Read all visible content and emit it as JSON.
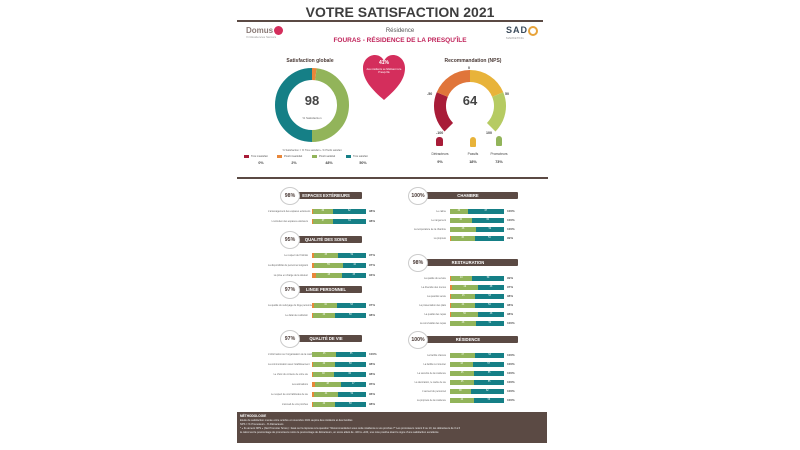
{
  "title": "VOTRE SATISFACTION 2021",
  "logos": {
    "left": "Domus",
    "left_sub": "Vi Résidences Séniors",
    "right": "SAD",
    "right_sub": "MARKETING"
  },
  "residence_label": "Résidence",
  "residence_name": "FOURAS - RÉSIDENCE DE LA PRESQU'ÎLE",
  "global": {
    "title": "Satisfaction globale",
    "value": "98",
    "caption": "% Satisfaction",
    "formula": "% Satisfaction = % Très satisfait + % Plutôt satisfait",
    "legend": [
      {
        "label": "Très insatisfait",
        "value": "0%",
        "color": "#a81c38"
      },
      {
        "label": "Plutôt insatisfait",
        "value": "2%",
        "color": "#e8873a"
      },
      {
        "label": "Plutôt satisfait",
        "value": "48%",
        "color": "#92b45a"
      },
      {
        "label": "Très satisfait",
        "value": "50%",
        "color": "#157f86"
      }
    ],
    "chart_data": {
      "type": "pie",
      "categories": [
        "Très insatisfait",
        "Plutôt insatisfait",
        "Plutôt satisfait",
        "Très satisfait"
      ],
      "values": [
        0,
        2,
        48,
        50
      ]
    }
  },
  "heart": {
    "pct": "41%",
    "text": "des résidents se fidélisent à la Presqu'île"
  },
  "nps": {
    "title": "Recommandation (NPS)",
    "value": "64",
    "ticks": [
      "-100",
      "-50",
      "0",
      "50",
      "100"
    ],
    "groups": [
      {
        "label": "Détracteurs",
        "value": "9%",
        "color": "#a81c38"
      },
      {
        "label": "Passifs",
        "value": "18%",
        "color": "#e8b33a"
      },
      {
        "label": "Promoteurs",
        "value": "73%",
        "color": "#92b45a"
      }
    ]
  },
  "categories": [
    {
      "name": "ESPACES EXTÉRIEURS",
      "pct": "98%",
      "items": [
        {
          "label": "L'aménagement des espaces extérieurs",
          "segs": [
            0,
            2,
            36,
            62
          ],
          "total": "98%"
        },
        {
          "label": "L'entretien des espaces extérieurs",
          "segs": [
            0,
            2,
            37,
            61
          ],
          "total": "98%"
        }
      ]
    },
    {
      "name": "QUALITÉ DES SOINS",
      "pct": "95%",
      "items": [
        {
          "label": "Le respect de l'intimité",
          "segs": [
            0,
            3,
            45,
            52
          ],
          "total": "97%"
        },
        {
          "label": "La disponibilité du personnel soignant",
          "segs": [
            0,
            3,
            55,
            42
          ],
          "total": "97%"
        },
        {
          "label": "La prise en charge de la douleur",
          "segs": [
            0,
            7,
            48,
            45
          ],
          "total": "93%"
        }
      ]
    },
    {
      "name": "LINGE PERSONNEL",
      "pct": "97%",
      "items": [
        {
          "label": "La qualité du nettoyage du linge personnel",
          "segs": [
            0,
            3,
            44,
            53
          ],
          "total": "97%"
        },
        {
          "label": "Le délai de restitution",
          "segs": [
            0,
            2,
            40,
            58
          ],
          "total": "98%"
        }
      ]
    },
    {
      "name": "QUALITÉ DE VIE",
      "pct": "97%",
      "items": [
        {
          "label": "L'information sur l'organisation de la résidence",
          "segs": [
            0,
            0,
            45,
            55
          ],
          "total": "100%"
        },
        {
          "label": "La communication avec l'établissement",
          "segs": [
            0,
            2,
            40,
            58
          ],
          "total": "98%"
        },
        {
          "label": "Le choix du contenu de votre vie",
          "segs": [
            0,
            2,
            38,
            60
          ],
          "total": "98%"
        },
        {
          "label": "Les animations",
          "segs": [
            0,
            5,
            48,
            47
          ],
          "total": "95%"
        },
        {
          "label": "Le respect de vos habitudes de vie",
          "segs": [
            0,
            4,
            44,
            52
          ],
          "total": "96%"
        },
        {
          "label": "L'accueil de vos proches",
          "segs": [
            0,
            2,
            40,
            58
          ],
          "total": "98%"
        }
      ]
    },
    {
      "name": "CHAMBRE",
      "pct": "100%",
      "items": [
        {
          "label": "Le calme",
          "segs": [
            0,
            0,
            33,
            67
          ],
          "total": "100%"
        },
        {
          "label": "Le rangement",
          "segs": [
            0,
            0,
            40,
            60
          ],
          "total": "100%"
        },
        {
          "label": "La température de la chambre",
          "segs": [
            0,
            0,
            48,
            52
          ],
          "total": "100%"
        },
        {
          "label": "La propreté",
          "segs": [
            0,
            1,
            45,
            54
          ],
          "total": "99%"
        }
      ]
    },
    {
      "name": "RESTAURATION",
      "pct": "98%",
      "items": [
        {
          "label": "La qualité du service",
          "segs": [
            0,
            1,
            40,
            59
          ],
          "total": "99%"
        },
        {
          "label": "La diversité des menus",
          "segs": [
            0,
            3,
            49,
            48
          ],
          "total": "97%"
        },
        {
          "label": "La quantité servie",
          "segs": [
            0,
            2,
            45,
            53
          ],
          "total": "98%"
        },
        {
          "label": "La présentation des plats",
          "segs": [
            0,
            2,
            44,
            54
          ],
          "total": "98%"
        },
        {
          "label": "La qualité des repas",
          "segs": [
            0,
            2,
            50,
            48
          ],
          "total": "98%"
        },
        {
          "label": "La convivialité des repas",
          "segs": [
            0,
            0,
            48,
            52
          ],
          "total": "100%"
        }
      ]
    },
    {
      "name": "RÉSIDENCE",
      "pct": "100%",
      "items": [
        {
          "label": "La facilité d'accès",
          "segs": [
            0,
            0,
            47,
            53
          ],
          "total": "100%"
        },
        {
          "label": "La facilité à s'orienter",
          "segs": [
            0,
            0,
            43,
            57
          ],
          "total": "100%"
        },
        {
          "label": "La sécurité de la résidence",
          "segs": [
            0,
            0,
            45,
            55
          ],
          "total": "100%"
        },
        {
          "label": "La décoration, le cadre de vie",
          "segs": [
            0,
            0,
            45,
            55
          ],
          "total": "100%"
        },
        {
          "label": "L'accueil du personnel",
          "segs": [
            0,
            0,
            38,
            62
          ],
          "total": "100%"
        },
        {
          "label": "La propreté de la résidence",
          "segs": [
            0,
            0,
            44,
            56
          ],
          "total": "100%"
        }
      ]
    }
  ],
  "footer": {
    "title": "MÉTHODOLOGIE",
    "lines": [
      "Étude de satisfaction menée entre octobre et novembre 2021 auprès des résidents et des familles",
      "NPS = % Promoteurs - % Détracteurs",
      "* « Ils aiment NPS » (Net Promoter Score) : basé sur la réponse à la question \"Recommanderiez-vous cette résidence à vos proches ?\" Les promoteurs notent 9 ou 10, les détracteurs de 0 à 6",
      "le calcul est le pourcentage de promoteurs moins le pourcentage de détracteurs, un score allant de -100 à +100, une note positive étant le signe d'une satisfaction excellente"
    ]
  }
}
